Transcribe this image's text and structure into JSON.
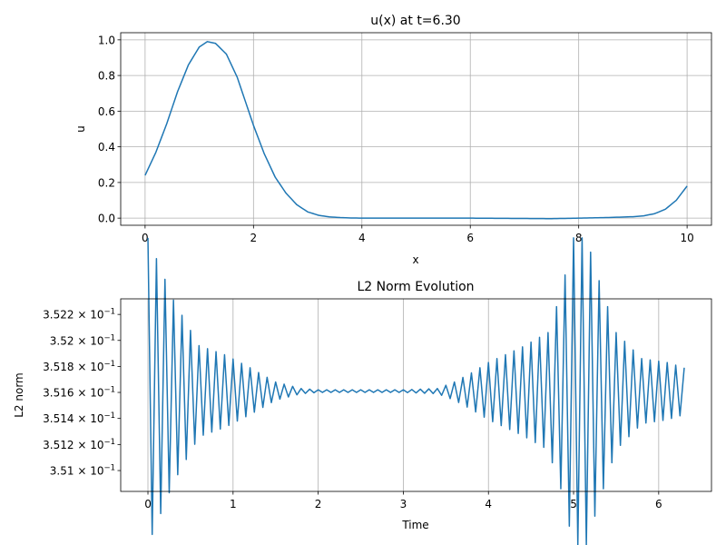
{
  "chart_data": [
    {
      "type": "line",
      "title": "u(x) at t=6.30",
      "xlabel": "x",
      "ylabel": "u",
      "xlim": [
        -0.45,
        10.45
      ],
      "ylim": [
        -0.04,
        1.04
      ],
      "xticks": [
        0,
        2,
        4,
        6,
        8,
        10
      ],
      "xtick_labels": [
        "0",
        "2",
        "4",
        "6",
        "8",
        "10"
      ],
      "yticks": [
        0.0,
        0.2,
        0.4,
        0.6,
        0.8,
        1.0
      ],
      "ytick_labels": [
        "0.0",
        "0.2",
        "0.4",
        "0.6",
        "0.8",
        "1.0"
      ],
      "grid": true,
      "color": "#1f77b4",
      "series": [
        {
          "x": [
            0,
            0.2,
            0.4,
            0.6,
            0.8,
            1.0,
            1.15,
            1.3,
            1.5,
            1.7,
            2.0,
            2.2,
            2.4,
            2.6,
            2.8,
            3.0,
            3.2,
            3.4,
            3.6,
            3.8,
            4.0,
            5.0,
            6.0,
            7.0,
            7.5,
            8.0,
            8.5,
            9.0,
            9.2,
            9.4,
            9.6,
            9.8,
            10.0
          ],
          "values": [
            0.24,
            0.37,
            0.53,
            0.71,
            0.86,
            0.96,
            0.99,
            0.98,
            0.92,
            0.79,
            0.52,
            0.36,
            0.23,
            0.14,
            0.075,
            0.035,
            0.016,
            0.007,
            0.003,
            0.001,
            0.0,
            0.0,
            0.0,
            -0.002,
            -0.003,
            0.0,
            0.003,
            0.008,
            0.013,
            0.025,
            0.05,
            0.1,
            0.18
          ]
        }
      ]
    },
    {
      "type": "line",
      "title": "L2 Norm Evolution",
      "xlabel": "Time",
      "ylabel": "L2 norm",
      "xlim": [
        -0.32,
        6.62
      ],
      "ylim": [
        0.35084,
        0.35232
      ],
      "yscale": "log",
      "xticks": [
        0,
        1,
        2,
        3,
        4,
        5,
        6
      ],
      "xtick_labels": [
        "0",
        "1",
        "2",
        "3",
        "4",
        "5",
        "6"
      ],
      "yticks": [
        0.351,
        0.3512,
        0.3514,
        0.3516,
        0.3518,
        0.352,
        0.3522
      ],
      "ytick_mantissas": [
        "3.51",
        "3.512",
        "3.514",
        "3.516",
        "3.518",
        "3.52",
        "3.522"
      ],
      "ytick_base": "× 10",
      "ytick_exponent": "−1",
      "grid": "x-only",
      "color": "#1f77b4",
      "series": [
        {
          "t_start": 0.0,
          "t_end": 6.3,
          "n_points": 127,
          "baseline": 0.35161,
          "envelope_t": [
            0.0,
            0.3,
            0.6,
            0.9,
            1.2,
            1.5,
            1.8,
            2.0,
            3.0,
            3.4,
            3.6,
            3.8,
            4.0,
            4.4,
            4.7,
            4.85,
            5.0,
            5.15,
            5.3,
            5.5,
            5.8,
            6.1,
            6.3
          ],
          "envelope_amp": [
            0.00118,
            0.0007,
            0.00035,
            0.00028,
            0.00018,
            7e-05,
            2e-05,
            1e-05,
            1e-05,
            2e-05,
            7e-05,
            0.00014,
            0.00022,
            0.00034,
            0.00045,
            0.00075,
            0.00118,
            0.00118,
            0.00085,
            0.00045,
            0.00025,
            0.00022,
            0.00018
          ]
        }
      ]
    }
  ]
}
